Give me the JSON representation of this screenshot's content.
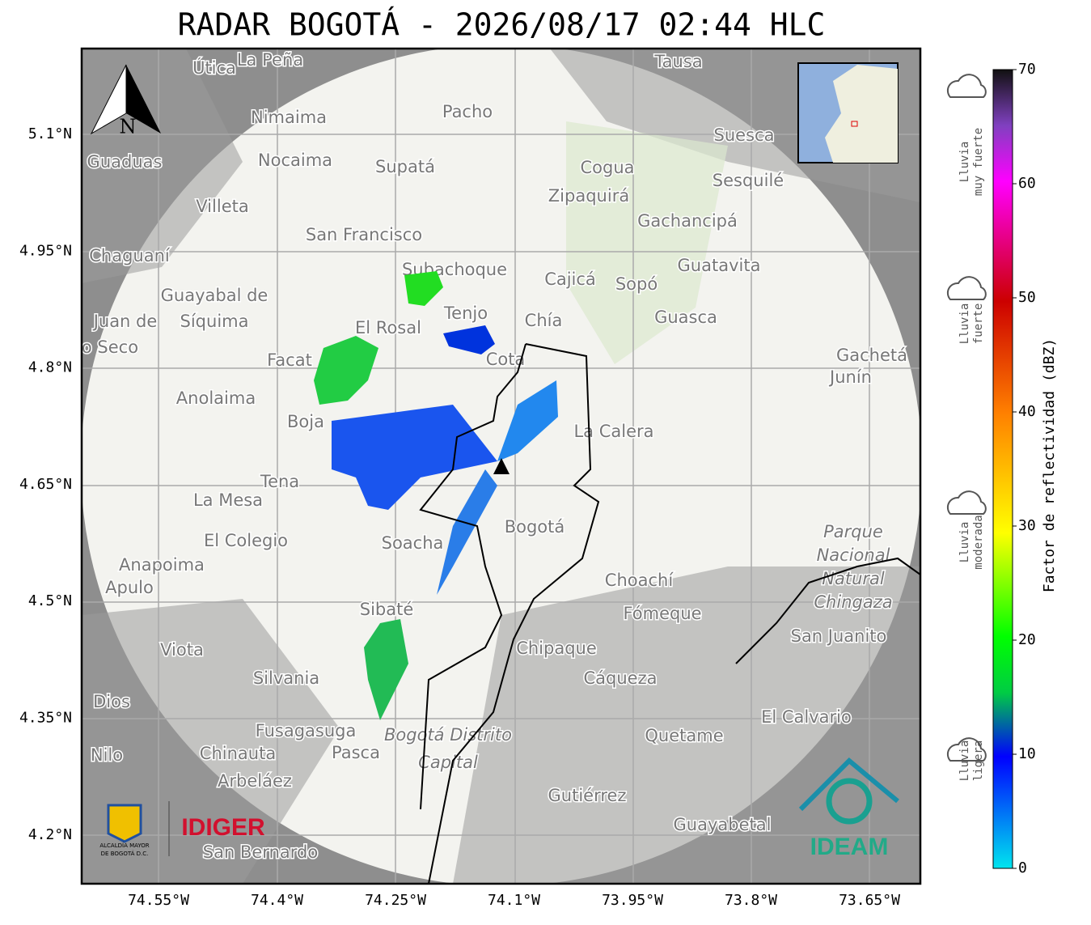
{
  "header": {
    "title": "RADAR BOGOTÁ - 2026/08/17 02:44 HLC"
  },
  "map": {
    "x_ticks": [
      "74.55°W",
      "74.4°W",
      "74.25°W",
      "74.1°W",
      "73.95°W",
      "73.8°W",
      "73.65°W"
    ],
    "y_ticks": [
      "5.1°N",
      "4.95°N",
      "4.8°N",
      "4.65°N",
      "4.5°N",
      "4.35°N",
      "4.2°N"
    ],
    "north": "N",
    "places": [
      "La Peña",
      "Útica",
      "Tausa",
      "Pacho",
      "Nimaima",
      "Suesca",
      "Guaduas",
      "Nocaima",
      "Supatá",
      "Cogua",
      "Sesquilé",
      "Zipaquirá",
      "Villeta",
      "Gachancipá",
      "San Francisco",
      "Chaguaní",
      "Guatavita",
      "Subachoque",
      "Cajicá",
      "Sopó",
      "Guayabal de",
      "Síquima",
      "Tenjo",
      "El Rosal",
      "Guasca",
      "Chía",
      "Juan de",
      "o Seco",
      "Facat",
      "Cota",
      "Gachetá",
      "Junín",
      "Anolaima",
      "Boja",
      "La Calera",
      "Tena",
      "La Mesa",
      "Bogotá",
      "Soacha",
      "El Colegio",
      "Anapoima",
      "Apulo",
      "Choachí",
      "Fómeque",
      "Sibaté",
      "San Juanito",
      "Viota",
      "Chipaque",
      "Silvania",
      "Cáqueza",
      "Dios",
      "El Calvario",
      "Fusagasuga",
      "Quetame",
      "Nilo",
      "Chinauta",
      "Pasca",
      "Arbeláez",
      "Gutiérrez",
      "Guayabetal",
      "San Bernardo"
    ],
    "park": [
      "Parque",
      "Nacional",
      "Natural",
      "Chingaza"
    ],
    "district": [
      "Bogotá Distrito",
      "Capital"
    ]
  },
  "colorbar": {
    "label": "Factor de reflectividad (dBZ)",
    "range": [
      0,
      70
    ],
    "ticks": [
      0,
      10,
      20,
      30,
      40,
      50,
      60,
      70
    ]
  },
  "legend": [
    [
      "Lluvia",
      "muy fuerte"
    ],
    [
      "Lluvia",
      "fuerte"
    ],
    [
      "Lluvia",
      "moderada"
    ],
    [
      "Lluvia",
      "ligera"
    ]
  ],
  "logos": {
    "alcaldia": [
      "ALCALDÍA MAYOR",
      "DE BOGOTÁ D.C."
    ],
    "idiger": "IDIGER",
    "ideam": "IDEAM"
  }
}
